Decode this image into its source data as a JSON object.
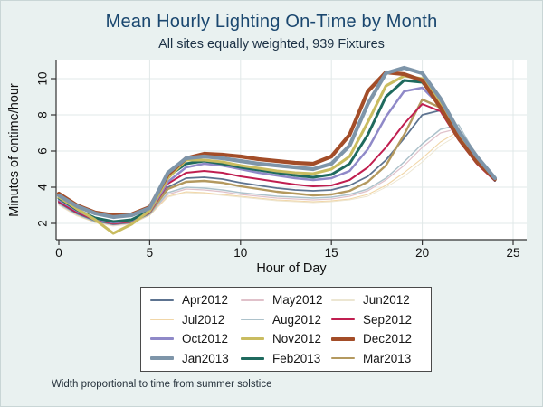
{
  "footnote": "Width proportional to time from summer solstice",
  "colors": {
    "background": "#e9f1f0",
    "plot_background": "#ffffff",
    "grid": "#e1e8e8",
    "axis": "#333333",
    "tick_label": "#111111",
    "title": "#1a476f",
    "subtitle": "#1d3246",
    "legend_border": "#4a4a4a"
  },
  "chart_data": {
    "type": "line",
    "title": "Mean Hourly Lighting On-Time by Month",
    "subtitle": "All sites equally weighted, 939 Fixtures",
    "xlabel": "Hour of Day",
    "ylabel": "Minutes of ontime/hour",
    "xlim": [
      0,
      25
    ],
    "ylim": [
      1.1,
      11.1
    ],
    "xticks": [
      0,
      5,
      10,
      15,
      20,
      25
    ],
    "yticks": [
      2,
      4,
      6,
      8,
      10
    ],
    "grid": true,
    "legend_position": "bottom",
    "legend_note": "line width proportional to time from summer solstice",
    "x": [
      0,
      1,
      2,
      3,
      4,
      5,
      6,
      7,
      8,
      9,
      10,
      11,
      12,
      13,
      14,
      15,
      16,
      17,
      18,
      19,
      20,
      21,
      22,
      23,
      24
    ],
    "series": [
      {
        "name": "Apr2012",
        "color": "#5d7390",
        "width": 1.8,
        "values": [
          3.15,
          2.55,
          2.15,
          1.95,
          2.05,
          2.55,
          4.0,
          4.5,
          4.55,
          4.45,
          4.25,
          4.1,
          3.95,
          3.85,
          3.8,
          3.85,
          4.1,
          4.6,
          5.5,
          6.7,
          8.0,
          8.25,
          6.9,
          5.4,
          4.35
        ]
      },
      {
        "name": "May2012",
        "color": "#e0c1ca",
        "width": 1.2,
        "values": [
          3.05,
          2.5,
          2.1,
          1.9,
          2.0,
          2.5,
          3.6,
          3.9,
          3.85,
          3.75,
          3.6,
          3.5,
          3.4,
          3.35,
          3.3,
          3.35,
          3.5,
          3.8,
          4.4,
          5.2,
          6.2,
          7.0,
          7.25,
          5.6,
          4.4
        ]
      },
      {
        "name": "Jun2012",
        "color": "#ece6d2",
        "width": 0.9,
        "values": [
          3.0,
          2.4,
          2.05,
          1.85,
          1.95,
          2.45,
          3.45,
          3.7,
          3.65,
          3.55,
          3.45,
          3.35,
          3.25,
          3.2,
          3.15,
          3.2,
          3.3,
          3.5,
          4.0,
          4.6,
          5.4,
          6.3,
          6.9,
          5.5,
          4.35
        ]
      },
      {
        "name": "Jul2012",
        "color": "#f1d6a7",
        "width": 1.1,
        "values": [
          3.05,
          2.45,
          2.05,
          1.9,
          2.0,
          2.45,
          3.5,
          3.75,
          3.7,
          3.6,
          3.5,
          3.4,
          3.3,
          3.25,
          3.2,
          3.25,
          3.35,
          3.6,
          4.1,
          4.8,
          5.6,
          6.5,
          7.1,
          5.55,
          4.35
        ]
      },
      {
        "name": "Aug2012",
        "color": "#adc2cb",
        "width": 1.5,
        "values": [
          3.1,
          2.5,
          2.1,
          1.95,
          2.05,
          2.5,
          3.7,
          4.0,
          3.95,
          3.85,
          3.7,
          3.6,
          3.5,
          3.45,
          3.4,
          3.45,
          3.6,
          3.9,
          4.5,
          5.4,
          6.4,
          7.2,
          7.45,
          5.7,
          4.4
        ]
      },
      {
        "name": "Sep2012",
        "color": "#c01e50",
        "width": 2.0,
        "values": [
          3.2,
          2.6,
          2.2,
          2.0,
          2.1,
          2.6,
          4.2,
          4.8,
          4.9,
          4.8,
          4.6,
          4.45,
          4.3,
          4.15,
          4.05,
          4.1,
          4.4,
          5.1,
          6.2,
          7.5,
          8.6,
          8.2,
          6.6,
          5.3,
          4.35
        ]
      },
      {
        "name": "Oct2012",
        "color": "#8f89c8",
        "width": 2.5,
        "values": [
          3.3,
          2.7,
          2.25,
          2.05,
          2.15,
          2.65,
          4.3,
          5.1,
          5.3,
          5.2,
          5.0,
          4.8,
          4.65,
          4.5,
          4.4,
          4.5,
          4.9,
          6.1,
          7.9,
          9.3,
          9.5,
          8.5,
          6.8,
          5.4,
          4.4
        ]
      },
      {
        "name": "Nov2012",
        "color": "#c9bc60",
        "width": 3.1,
        "values": [
          3.45,
          2.8,
          2.2,
          1.45,
          1.95,
          2.7,
          4.5,
          5.5,
          5.5,
          5.4,
          5.2,
          5.05,
          4.9,
          4.8,
          4.75,
          5.0,
          5.7,
          7.6,
          9.6,
          10.15,
          10.0,
          8.7,
          7.0,
          5.6,
          4.45
        ]
      },
      {
        "name": "Dec2012",
        "color": "#a34d28",
        "width": 4.2,
        "values": [
          3.65,
          3.0,
          2.6,
          2.45,
          2.5,
          2.9,
          4.7,
          5.6,
          5.85,
          5.8,
          5.7,
          5.55,
          5.45,
          5.35,
          5.3,
          5.7,
          6.9,
          9.3,
          10.35,
          10.25,
          9.9,
          8.4,
          6.7,
          5.4,
          4.45
        ]
      },
      {
        "name": "Jan2013",
        "color": "#7e95a9",
        "width": 4.2,
        "values": [
          3.55,
          2.95,
          2.55,
          2.35,
          2.45,
          2.85,
          4.8,
          5.6,
          5.7,
          5.6,
          5.45,
          5.3,
          5.2,
          5.1,
          5.0,
          5.3,
          6.3,
          8.6,
          10.3,
          10.6,
          10.3,
          8.9,
          7.1,
          5.7,
          4.5
        ]
      },
      {
        "name": "Feb2013",
        "color": "#1f6a5e",
        "width": 3.0,
        "values": [
          3.4,
          2.75,
          2.3,
          2.1,
          2.2,
          2.7,
          4.6,
          5.3,
          5.45,
          5.3,
          5.1,
          4.95,
          4.8,
          4.65,
          4.55,
          4.7,
          5.3,
          6.9,
          9.0,
          9.9,
          9.8,
          8.6,
          6.9,
          5.5,
          4.4
        ]
      },
      {
        "name": "Mar2013",
        "color": "#b4995f",
        "width": 2.4,
        "values": [
          3.25,
          2.65,
          2.2,
          2.0,
          2.1,
          2.6,
          3.9,
          4.3,
          4.35,
          4.25,
          4.05,
          3.9,
          3.75,
          3.65,
          3.55,
          3.6,
          3.8,
          4.3,
          5.2,
          6.9,
          8.85,
          8.4,
          6.95,
          5.35,
          4.4
        ]
      }
    ],
    "draw_order": [
      2,
      3,
      1,
      4,
      0,
      11,
      5,
      6,
      10,
      7,
      8,
      9
    ]
  }
}
